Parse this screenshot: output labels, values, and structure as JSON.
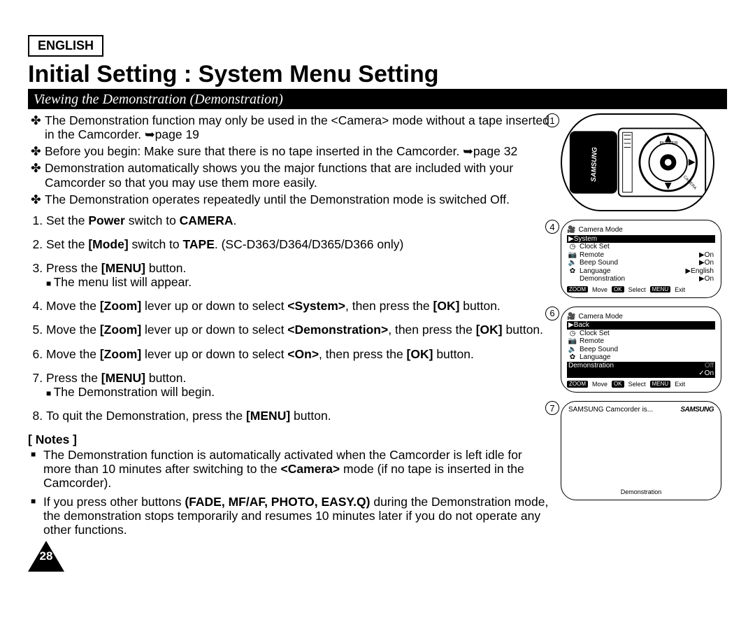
{
  "lang_label": "ENGLISH",
  "title": "Initial Setting : System Menu Setting",
  "section": "Viewing the Demonstration (Demonstration)",
  "bullets": [
    "The Demonstration function may only be used in the <Camera> mode without a tape inserted in the Camcorder. ➥page 19",
    "Before you begin: Make sure that there is no tape inserted in the Camcorder. ➥page 32",
    "Demonstration automatically shows you the major functions that are included with your Camcorder so that you may use them more easily.",
    "The Demonstration operates repeatedly until the Demonstration mode is switched Off."
  ],
  "steps": {
    "s1": "Set the Power switch to CAMERA.",
    "s2": "Set the [Mode] switch to TAPE. (SC-D363/D364/D365/D366 only)",
    "s3": "Press the [MENU] button.",
    "s3sub": "The menu list will appear.",
    "s4": "Move the [Zoom] lever up or down to select <System>, then press the [OK] button.",
    "s5": "Move the [Zoom] lever up or down to select <Demonstration>, then press the [OK] button.",
    "s6": "Move the [Zoom] lever up or down to select <On>, then press the [OK] button.",
    "s7": "Press the [MENU] button.",
    "s7sub": "The Demonstration will begin.",
    "s8": "To quit the Demonstration, press the [MENU] button."
  },
  "notes_label": "[ Notes ]",
  "notes": [
    "The Demonstration function is automatically activated when the Camcorder is left idle for more than 10 minutes after switching to the <Camera> mode (if no tape is inserted in the Camcorder).",
    "If you press other buttons (FADE, MF/AF, PHOTO, EASY.Q) during the Demonstration mode, the demonstration stops temporarily and resumes 10 minutes later if you do not operate any other functions."
  ],
  "page_number": "28",
  "fig_numbers": {
    "a": "1",
    "b": "4",
    "c": "6",
    "d": "7"
  },
  "menu4": {
    "title": "Camera Mode",
    "hl": "▶System",
    "rows": [
      {
        "ico": "◷",
        "lbl": "Clock Set",
        "val": ""
      },
      {
        "ico": "📷",
        "lbl": "Remote",
        "val": "▶On"
      },
      {
        "ico": "🔈",
        "lbl": "Beep Sound",
        "val": "▶On"
      },
      {
        "ico": "✿",
        "lbl": "Language",
        "val": "▶English"
      },
      {
        "ico": "",
        "lbl": "Demonstration",
        "val": "▶On"
      }
    ],
    "footer": {
      "k1": "ZOOM",
      "t1": "Move",
      "k2": "OK",
      "t2": "Select",
      "k3": "MENU",
      "t3": "Exit"
    }
  },
  "menu6": {
    "title": "Camera Mode",
    "hl": "▶Back",
    "rows": [
      {
        "ico": "◷",
        "lbl": "Clock Set",
        "val": ""
      },
      {
        "ico": "📷",
        "lbl": "Remote",
        "val": ""
      },
      {
        "ico": "🔈",
        "lbl": "Beep Sound",
        "val": ""
      },
      {
        "ico": "✿",
        "lbl": "Language",
        "val": ""
      }
    ],
    "demo_row": {
      "lbl": "Demonstration",
      "off": "Off",
      "on": "✓On"
    },
    "footer": {
      "k1": "ZOOM",
      "t1": "Move",
      "k2": "OK",
      "t2": "Select",
      "k3": "MENU",
      "t3": "Exit"
    }
  },
  "demo7": {
    "top_text": "SAMSUNG Camcorder is...",
    "logo": "SAMSUNG",
    "bottom": "Demonstration"
  }
}
